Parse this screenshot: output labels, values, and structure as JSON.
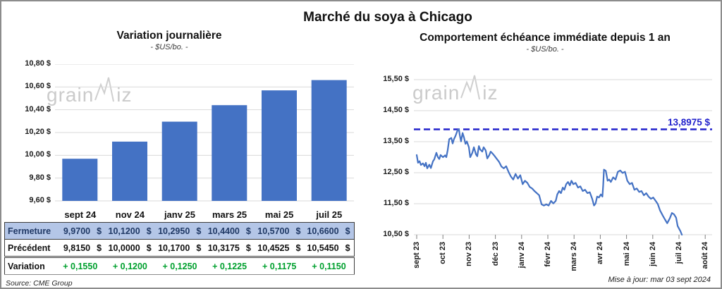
{
  "page": {
    "title": "Marché du soya à Chicago",
    "source": "Source: CME Group",
    "updated": "Mise à jour: mar 03 sept 2024"
  },
  "watermark": {
    "part1": "grain",
    "part2": "iz"
  },
  "colors": {
    "bar": "#4472C4",
    "line": "#4472C4",
    "reference": "#2222CC",
    "grid": "#D9D9D9",
    "tick": "#7F7F7F",
    "table_highlight_bg": "#B4C6E7",
    "table_highlight_text": "#1F3864",
    "variation_green": "#00A02E"
  },
  "chart_data": [
    {
      "type": "bar",
      "title": "Variation journalière",
      "subtitle": "- $US/bo. -",
      "categories": [
        "sept 24",
        "nov 24",
        "janv 25",
        "mars 25",
        "mai 25",
        "juil 25"
      ],
      "values": [
        9.97,
        10.12,
        10.295,
        10.44,
        10.57,
        10.66
      ],
      "ylim": [
        9.6,
        10.8
      ],
      "y_ticks": [
        "10,80 $",
        "10,60 $",
        "10,40 $",
        "10,20 $",
        "10,00 $",
        "9,80 $",
        "9,60 $"
      ],
      "y_tick_values": [
        10.8,
        10.6,
        10.4,
        10.2,
        10.0,
        9.8,
        9.6
      ],
      "grid": true,
      "legend": false
    },
    {
      "type": "line",
      "title": "Comportement échéance immédiate depuis 1 an",
      "subtitle": "- $US/bo. -",
      "x_ticks": [
        "sept 23",
        "oct 23",
        "nov 23",
        "déc 23",
        "janv 24",
        "févr 24",
        "mars 24",
        "avr 24",
        "mai 24",
        "juin 24",
        "juil 24",
        "août 24"
      ],
      "ylim": [
        10.5,
        15.5
      ],
      "y_ticks": [
        "15,50 $",
        "14,50 $",
        "13,50 $",
        "12,50 $",
        "11,50 $",
        "10,50 $"
      ],
      "y_tick_values": [
        15.5,
        14.5,
        13.5,
        12.5,
        11.5,
        10.5
      ],
      "grid": true,
      "legend": false,
      "reference_line": {
        "value": 13.8975,
        "label": "13,8975 $"
      },
      "series": [
        {
          "name": "échéance immédiate",
          "x_unit": "months from sept 23",
          "points": [
            [
              0,
              13.07
            ],
            [
              0.05,
              12.82
            ],
            [
              0.11,
              12.87
            ],
            [
              0.16,
              12.75
            ],
            [
              0.24,
              12.8
            ],
            [
              0.3,
              12.71
            ],
            [
              0.35,
              12.82
            ],
            [
              0.4,
              12.64
            ],
            [
              0.48,
              12.76
            ],
            [
              0.54,
              12.65
            ],
            [
              0.62,
              12.87
            ],
            [
              0.67,
              12.93
            ],
            [
              0.75,
              13.14
            ],
            [
              0.81,
              13.0
            ],
            [
              0.86,
              12.94
            ],
            [
              0.91,
              13.07
            ],
            [
              1.0,
              13.0
            ],
            [
              1.08,
              13.06
            ],
            [
              1.13,
              13.0
            ],
            [
              1.18,
              13.22
            ],
            [
              1.24,
              13.58
            ],
            [
              1.32,
              13.62
            ],
            [
              1.37,
              13.44
            ],
            [
              1.42,
              13.58
            ],
            [
              1.48,
              13.69
            ],
            [
              1.56,
              13.87
            ],
            [
              1.61,
              13.9
            ],
            [
              1.64,
              13.72
            ],
            [
              1.69,
              13.51
            ],
            [
              1.75,
              13.78
            ],
            [
              1.8,
              13.64
            ],
            [
              1.86,
              13.43
            ],
            [
              1.91,
              13.51
            ],
            [
              1.99,
              13.32
            ],
            [
              2.04,
              13.0
            ],
            [
              2.12,
              13.14
            ],
            [
              2.18,
              13.32
            ],
            [
              2.26,
              13.09
            ],
            [
              2.31,
              13.03
            ],
            [
              2.37,
              13.36
            ],
            [
              2.42,
              13.25
            ],
            [
              2.5,
              13.18
            ],
            [
              2.55,
              13.32
            ],
            [
              2.63,
              13.22
            ],
            [
              2.69,
              12.96
            ],
            [
              2.77,
              13.07
            ],
            [
              2.82,
              13.18
            ],
            [
              2.9,
              13.11
            ],
            [
              2.96,
              13.05
            ],
            [
              3.04,
              12.96
            ],
            [
              3.14,
              12.85
            ],
            [
              3.23,
              12.7
            ],
            [
              3.32,
              12.64
            ],
            [
              3.41,
              12.71
            ],
            [
              3.5,
              12.53
            ],
            [
              3.59,
              12.38
            ],
            [
              3.68,
              12.28
            ],
            [
              3.77,
              12.46
            ],
            [
              3.86,
              12.31
            ],
            [
              3.95,
              12.42
            ],
            [
              4.04,
              12.13
            ],
            [
              4.13,
              12.24
            ],
            [
              4.22,
              12.17
            ],
            [
              4.31,
              12.04
            ],
            [
              4.4,
              11.99
            ],
            [
              4.49,
              11.91
            ],
            [
              4.58,
              11.84
            ],
            [
              4.67,
              11.77
            ],
            [
              4.76,
              11.48
            ],
            [
              4.85,
              11.44
            ],
            [
              4.94,
              11.48
            ],
            [
              5.03,
              11.44
            ],
            [
              5.12,
              11.59
            ],
            [
              5.21,
              11.51
            ],
            [
              5.3,
              11.59
            ],
            [
              5.36,
              11.8
            ],
            [
              5.43,
              11.91
            ],
            [
              5.5,
              11.84
            ],
            [
              5.57,
              12.02
            ],
            [
              5.63,
              11.95
            ],
            [
              5.7,
              12.13
            ],
            [
              5.77,
              12.2
            ],
            [
              5.84,
              12.09
            ],
            [
              5.9,
              12.24
            ],
            [
              5.97,
              12.13
            ],
            [
              6.06,
              12.17
            ],
            [
              6.15,
              12.02
            ],
            [
              6.24,
              12.06
            ],
            [
              6.33,
              11.91
            ],
            [
              6.42,
              11.95
            ],
            [
              6.51,
              11.84
            ],
            [
              6.6,
              11.87
            ],
            [
              6.69,
              11.66
            ],
            [
              6.76,
              11.44
            ],
            [
              6.82,
              11.51
            ],
            [
              6.88,
              11.73
            ],
            [
              6.95,
              11.7
            ],
            [
              7.02,
              11.8
            ],
            [
              7.08,
              11.73
            ],
            [
              7.11,
              12.1
            ],
            [
              7.14,
              12.6
            ],
            [
              7.21,
              12.56
            ],
            [
              7.28,
              12.24
            ],
            [
              7.34,
              12.28
            ],
            [
              7.4,
              12.2
            ],
            [
              7.49,
              12.35
            ],
            [
              7.58,
              12.28
            ],
            [
              7.67,
              12.53
            ],
            [
              7.76,
              12.57
            ],
            [
              7.85,
              12.49
            ],
            [
              7.94,
              12.53
            ],
            [
              8.03,
              12.24
            ],
            [
              8.12,
              12.13
            ],
            [
              8.21,
              12.17
            ],
            [
              8.3,
              11.95
            ],
            [
              8.39,
              11.99
            ],
            [
              8.48,
              11.88
            ],
            [
              8.57,
              11.91
            ],
            [
              8.66,
              11.77
            ],
            [
              8.75,
              11.84
            ],
            [
              8.84,
              11.73
            ],
            [
              8.93,
              11.66
            ],
            [
              9.02,
              11.7
            ],
            [
              9.11,
              11.59
            ],
            [
              9.19,
              11.49
            ],
            [
              9.28,
              11.28
            ],
            [
              9.38,
              11.12
            ],
            [
              9.46,
              11.0
            ],
            [
              9.55,
              10.87
            ],
            [
              9.65,
              11.03
            ],
            [
              9.73,
              11.2
            ],
            [
              9.81,
              11.16
            ],
            [
              9.89,
              11.05
            ],
            [
              9.95,
              10.78
            ],
            [
              10.05,
              10.62
            ],
            [
              10.11,
              10.5
            ]
          ]
        }
      ]
    }
  ],
  "table": {
    "headers": [
      "",
      "sept 24",
      "nov 24",
      "janv 25",
      "mars 25",
      "mai 25",
      "juil 25"
    ],
    "rows": [
      {
        "label": "Fermeture",
        "values": [
          "9,9700",
          "10,1200",
          "10,2950",
          "10,4400",
          "10,5700",
          "10,6600"
        ],
        "currency": "$",
        "style": "highlight"
      },
      {
        "label": "Précédent",
        "values": [
          "9,8150",
          "10,0000",
          "10,1700",
          "10,3175",
          "10,4525",
          "10,5450"
        ],
        "currency": "$",
        "style": "normal"
      },
      {
        "label": "Variation",
        "values": [
          "+ 0,1550",
          "+ 0,1200",
          "+ 0,1250",
          "+ 0,1225",
          "+ 0,1175",
          "+ 0,1150"
        ],
        "currency": "",
        "style": "variation"
      }
    ]
  }
}
